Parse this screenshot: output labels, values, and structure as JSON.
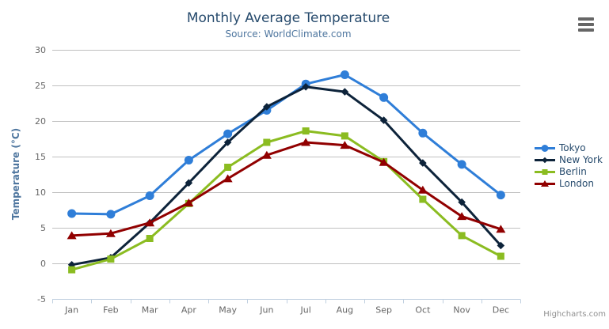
{
  "chart_data": {
    "type": "line",
    "title": "Monthly Average Temperature",
    "subtitle": "Source: WorldClimate.com",
    "xlabel": "",
    "ylabel": "Temperature (°C)",
    "categories": [
      "Jan",
      "Feb",
      "Mar",
      "Apr",
      "May",
      "Jun",
      "Jul",
      "Aug",
      "Sep",
      "Oct",
      "Nov",
      "Dec"
    ],
    "y_ticks": [
      -5,
      0,
      5,
      10,
      15,
      20,
      25,
      30
    ],
    "ylim": [
      -5,
      30
    ],
    "grid": true,
    "legend_position": "right-middle",
    "series": [
      {
        "name": "Tokyo",
        "marker": "circle",
        "color": "#2f7ed8",
        "values": [
          7.0,
          6.9,
          9.5,
          14.5,
          18.2,
          21.5,
          25.2,
          26.5,
          23.3,
          18.3,
          13.9,
          9.6
        ]
      },
      {
        "name": "New York",
        "marker": "diamond",
        "color": "#0d233a",
        "values": [
          -0.2,
          0.8,
          5.7,
          11.3,
          17.0,
          22.0,
          24.8,
          24.1,
          20.1,
          14.1,
          8.6,
          2.5
        ]
      },
      {
        "name": "Berlin",
        "marker": "square",
        "color": "#8bbc21",
        "values": [
          -0.9,
          0.6,
          3.5,
          8.4,
          13.5,
          17.0,
          18.6,
          17.9,
          14.3,
          9.0,
          3.9,
          1.0
        ]
      },
      {
        "name": "London",
        "marker": "triangle",
        "color": "#910000",
        "values": [
          3.9,
          4.2,
          5.7,
          8.5,
          11.9,
          15.2,
          17.0,
          16.6,
          14.2,
          10.3,
          6.6,
          4.8
        ]
      }
    ],
    "credit": "Highcharts.com",
    "colors": {
      "title": "#274b6d",
      "subtitle": "#4d759e",
      "axis_title": "#4d759e",
      "axis_label": "#666666",
      "grid_line": "#c0c0c0",
      "axis_line": "#c0d0e0",
      "legend_text": "#274b6d",
      "credit": "#909090",
      "menu_icon": "#666666",
      "background": "#ffffff"
    }
  }
}
